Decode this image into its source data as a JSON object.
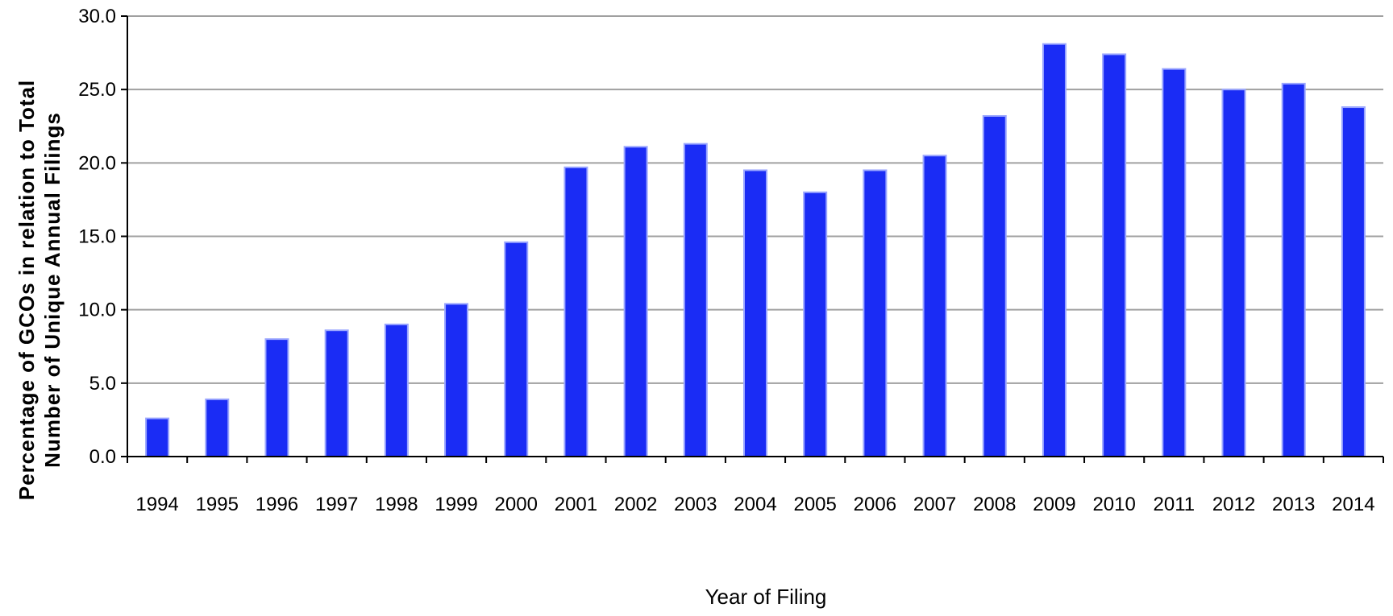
{
  "chart_data": {
    "type": "bar",
    "title": "",
    "xlabel": "Year of Filing",
    "ylabel_line1": "Percentage of GCOs in relation to Total",
    "ylabel_line2": "Number of Unique Annual Filings",
    "ylim": [
      0,
      30
    ],
    "yticks": [
      "0.0",
      "5.0",
      "10.0",
      "15.0",
      "20.0",
      "25.0",
      "30.0"
    ],
    "ytick_values": [
      0,
      5,
      10,
      15,
      20,
      25,
      30
    ],
    "grid": true,
    "legend": "none",
    "bar_color": "#1a2cf5",
    "bar_edge_color": "#9aa6ff",
    "grid_color": "#a0a0a0",
    "categories": [
      "1994",
      "1995",
      "1996",
      "1997",
      "1998",
      "1999",
      "2000",
      "2001",
      "2002",
      "2003",
      "2004",
      "2005",
      "2006",
      "2007",
      "2008",
      "2009",
      "2010",
      "2011",
      "2012",
      "2013",
      "2014"
    ],
    "values": [
      2.6,
      3.9,
      8.0,
      8.6,
      9.0,
      10.4,
      14.6,
      19.7,
      21.1,
      21.3,
      19.5,
      18.0,
      19.5,
      20.5,
      23.2,
      28.1,
      27.4,
      26.4,
      25.0,
      25.4,
      23.8
    ]
  }
}
